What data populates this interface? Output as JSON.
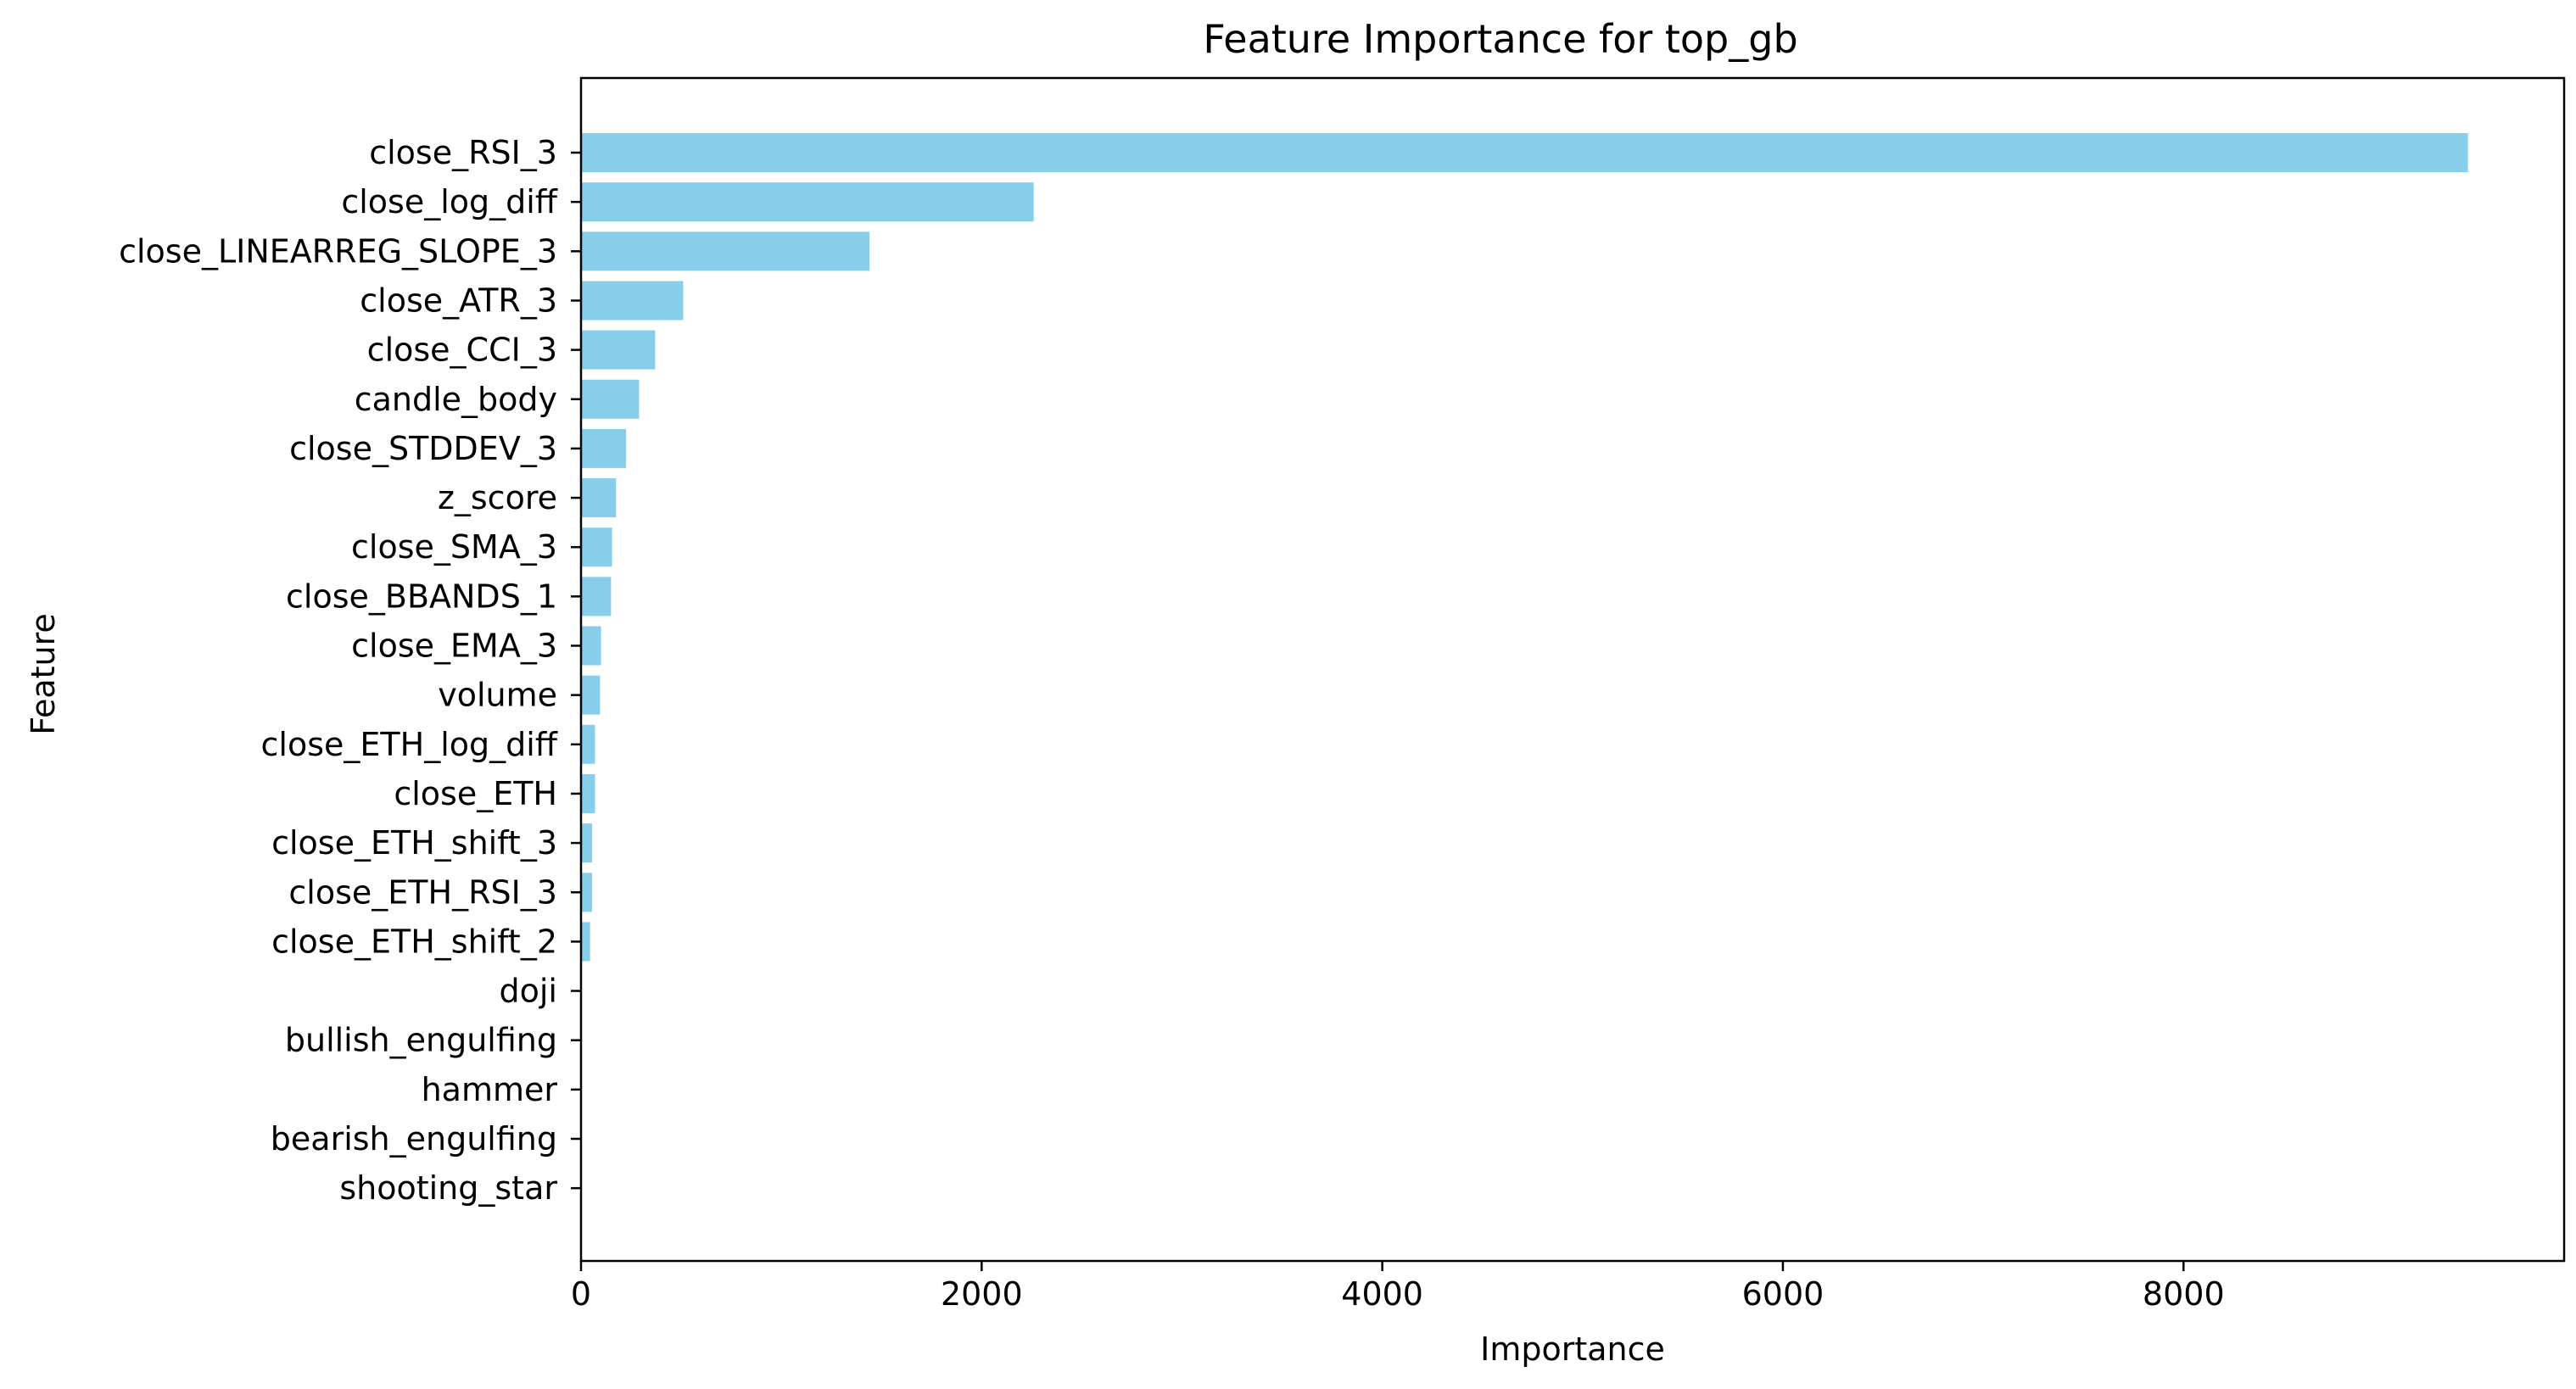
{
  "chart_data": {
    "type": "bar",
    "orientation": "horizontal",
    "title": "Feature Importance for top_gb",
    "xlabel": "Importance",
    "ylabel": "Feature",
    "bar_color": "#87CEEB",
    "xlim": [
      0,
      9900
    ],
    "x_ticks": [
      0,
      2000,
      4000,
      6000,
      8000
    ],
    "grid": false,
    "legend": "none",
    "categories": [
      "close_RSI_3",
      "close_log_diff",
      "close_LINEARREG_SLOPE_3",
      "close_ATR_3",
      "close_CCI_3",
      "candle_body",
      "close_STDDEV_3",
      "z_score",
      "close_SMA_3",
      "close_BBANDS_1",
      "close_EMA_3",
      "volume",
      "close_ETH_log_diff",
      "close_ETH",
      "close_ETH_shift_3",
      "close_ETH_RSI_3",
      "close_ETH_shift_2",
      "doji",
      "bullish_engulfing",
      "hammer",
      "bearish_engulfing",
      "shooting_star"
    ],
    "values": [
      9420,
      2260,
      1440,
      510,
      370,
      290,
      225,
      175,
      155,
      150,
      100,
      95,
      70,
      70,
      55,
      55,
      45,
      0,
      0,
      0,
      0,
      0
    ]
  }
}
